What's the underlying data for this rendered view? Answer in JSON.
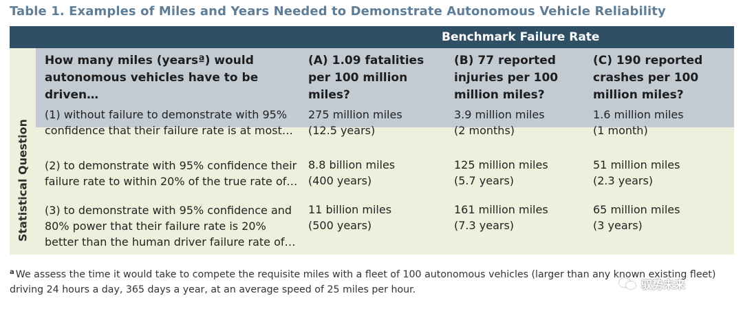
{
  "title": "Table 1. Examples of Miles and Years Needed to Demonstrate Autonomous Vehicle Reliability",
  "band_label": "Benchmark Failure Rate",
  "side_label": "Statistical Question",
  "header": {
    "question": "How many miles (yearsª) would autonomous vehicles have to be driven…",
    "col_a": "(A) 1.09 fatalities per 100 million miles?",
    "col_b": "(B) 77 reported injuries per 100 million miles?",
    "col_c": "(C) 190 reported crashes per 100 million miles?"
  },
  "rows": [
    {
      "question": "(1) without failure to demonstrate with 95% confidence that their failure rate is at most…",
      "a_miles": "275 million miles",
      "a_time": "(12.5 years)",
      "b_miles": "3.9 million miles",
      "b_time": "(2 months)",
      "c_miles": "1.6 million miles",
      "c_time": "(1 month)"
    },
    {
      "question": "(2) to demonstrate with 95% confidence their failure rate to within 20% of the true rate of…",
      "a_miles": "8.8 billion miles",
      "a_time": "(400 years)",
      "b_miles": "125 million miles",
      "b_time": "(5.7 years)",
      "c_miles": "51 million miles",
      "c_time": "(2.3 years)"
    },
    {
      "question": "(3) to demonstrate with 95% confidence and 80% power that their failure rate is 20% better than the human driver failure rate of…",
      "a_miles": "11 billion miles",
      "a_time": "(500 years)",
      "b_miles": "161 million miles",
      "b_time": "(7.3 years)",
      "c_miles": "65 million miles",
      "c_time": "(3 years)"
    }
  ],
  "footnote": {
    "marker": "a",
    "text": "We assess the time it would take to compete the requisite miles with a fleet of 100 autonomous vehicles (larger than any known existing fleet) driving 24 hours a day, 365 days a year, at an average speed of 25 miles per hour."
  },
  "watermark": "驭势未来",
  "colors": {
    "title": "#5f7d96",
    "band": "#2e4f64",
    "header_bg": "#c2cad2",
    "body_bg": "#efefdd"
  }
}
